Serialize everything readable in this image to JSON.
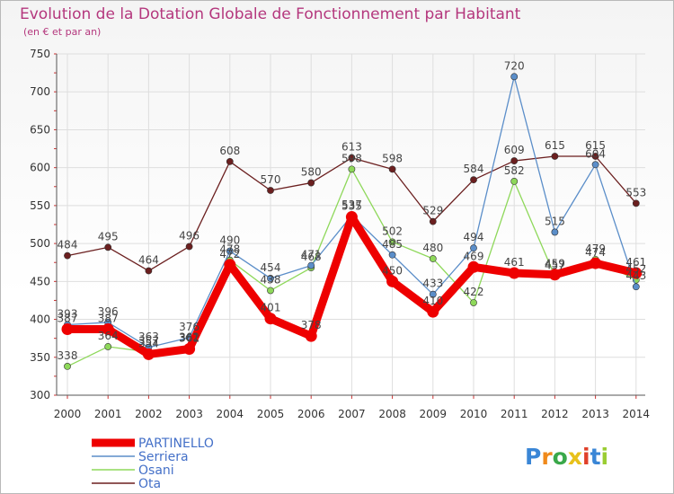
{
  "title": "Evolution de la Dotation Globale de Fonctionnement par Habitant",
  "subtitle": "(en € et par an)",
  "logo_text": "Proxiti",
  "colors": {
    "title": "#b4377d",
    "grid": "#dedede",
    "axis": "#555555"
  },
  "chart_data": {
    "type": "line",
    "title": "Evolution de la Dotation Globale de Fonctionnement par Habitant",
    "ylabel": "(en € et par an)",
    "xlabel": "",
    "x": [
      "2000",
      "2001",
      "2002",
      "2003",
      "2004",
      "2005",
      "2006",
      "2007",
      "2008",
      "2009",
      "2010",
      "2011",
      "2012",
      "2013",
      "2014"
    ],
    "ylim": [
      300,
      750
    ],
    "yticks": [
      300,
      350,
      400,
      450,
      500,
      550,
      600,
      650,
      700,
      750
    ],
    "legend_position": "bottom-left",
    "series": [
      {
        "name": "Ota",
        "color": "#6b1f1f",
        "values": [
          484,
          495,
          464,
          496,
          608,
          570,
          580,
          613,
          598,
          529,
          584,
          609,
          615,
          615,
          553
        ]
      },
      {
        "name": "Osani",
        "color": "#8ed85a",
        "values": [
          338,
          364,
          357,
          362,
          478,
          438,
          468,
          598,
          502,
          480,
          422,
          582,
          457,
          479,
          452
        ]
      },
      {
        "name": "Serriera",
        "color": "#5b8ec9",
        "values": [
          393,
          396,
          363,
          376,
          490,
          454,
          471,
          537,
          485,
          433,
          494,
          720,
          515,
          604,
          443
        ]
      },
      {
        "name": "PARTINELLO",
        "color": "#ee0000",
        "values": [
          387,
          387,
          354,
          361,
          472,
          401,
          378,
          535,
          450,
          410,
          469,
          461,
          459,
          474,
          461
        ]
      }
    ],
    "legend_order": [
      "PARTINELLO",
      "Serriera",
      "Osani",
      "Ota"
    ]
  }
}
